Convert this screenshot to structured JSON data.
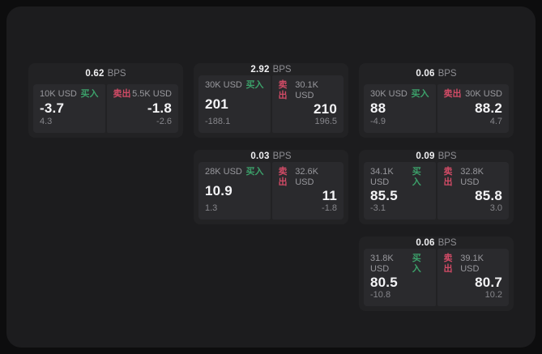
{
  "colors": {
    "page-bg": "#0d0d0e",
    "panel-bg": "#1c1c1e",
    "card-bg": "#222224",
    "tile-bg": "#2a2a2d",
    "buy-color": "#3ca06a",
    "sell-color": "#d14b66"
  },
  "labels": {
    "bps_unit": "BPS",
    "buy": "买入",
    "sell": "卖出"
  },
  "cards": [
    {
      "bps": "0.62",
      "buy": {
        "amount": "10K USD",
        "price": "-3.7",
        "delta": "4.3"
      },
      "sell": {
        "amount": "5.5K USD",
        "price": "-1.8",
        "delta": "-2.6"
      }
    },
    {
      "bps": "2.92",
      "buy": {
        "amount": "30K USD",
        "price": "201",
        "delta": "-188.1"
      },
      "sell": {
        "amount": "30.1K USD",
        "price": "210",
        "delta": "196.5"
      }
    },
    {
      "bps": "0.06",
      "buy": {
        "amount": "30K USD",
        "price": "88",
        "delta": "-4.9"
      },
      "sell": {
        "amount": "30K USD",
        "price": "88.2",
        "delta": "4.7"
      }
    },
    {
      "bps": "0.03",
      "buy": {
        "amount": "28K USD",
        "price": "10.9",
        "delta": "1.3"
      },
      "sell": {
        "amount": "32.6K USD",
        "price": "11",
        "delta": "-1.8"
      }
    },
    {
      "bps": "0.09",
      "buy": {
        "amount": "34.1K USD",
        "price": "85.5",
        "delta": "-3.1"
      },
      "sell": {
        "amount": "32.8K USD",
        "price": "85.8",
        "delta": "3.0"
      }
    },
    {
      "bps": "0.06",
      "buy": {
        "amount": "31.8K USD",
        "price": "80.5",
        "delta": "-10.8"
      },
      "sell": {
        "amount": "39.1K USD",
        "price": "80.7",
        "delta": "10.2"
      }
    }
  ]
}
